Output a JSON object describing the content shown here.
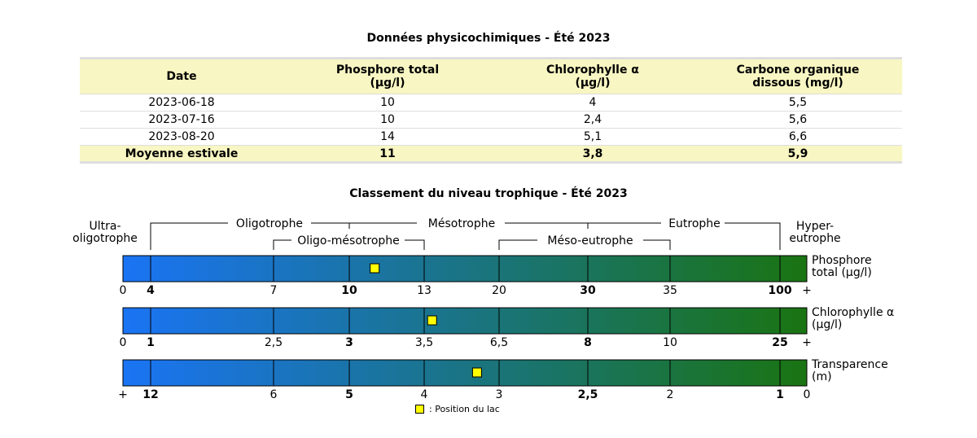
{
  "table": {
    "title": "Données physicochimiques - Été 2023",
    "headers": [
      {
        "line1": "Date",
        "line2": ""
      },
      {
        "line1": "Phosphore total",
        "line2": "(µg/l)"
      },
      {
        "line1": "Chlorophylle α",
        "line2": "(µg/l)"
      },
      {
        "line1": "Carbone organique",
        "line2": "dissous (mg/l)"
      }
    ],
    "rows": [
      [
        "2023-06-18",
        "10",
        "4",
        "5,5"
      ],
      [
        "2023-07-16",
        "10",
        "2,4",
        "5,6"
      ],
      [
        "2023-08-20",
        "14",
        "5,1",
        "6,6"
      ]
    ],
    "mean": [
      "Moyenne estivale",
      "11",
      "3,8",
      "5,9"
    ]
  },
  "chart_data": {
    "type": "gauge",
    "title": "Classement du niveau trophique - Été 2023",
    "zones_top": [
      {
        "label": "Ultra-\noligotrophe"
      },
      {
        "label": "Oligotrophe"
      },
      {
        "label": "Mésotrophe"
      },
      {
        "label": "Eutrophe"
      },
      {
        "label": "Hyper-\neutrophe"
      }
    ],
    "zones_sub": [
      {
        "label": "Oligo-mésotrophe"
      },
      {
        "label": "Méso-eutrophe"
      }
    ],
    "gradient": {
      "start": "#1a74f5",
      "end": "#1a7412"
    },
    "marker_color": "#ffff00",
    "scales": [
      {
        "name": "Phosphore\ntotal (µg/l)",
        "ticks": [
          {
            "label": "0",
            "bold": false,
            "pos": 0
          },
          {
            "label": "4",
            "bold": true,
            "pos": 1
          },
          {
            "label": "7",
            "bold": false,
            "pos": 2
          },
          {
            "label": "10",
            "bold": true,
            "pos": 3
          },
          {
            "label": "13",
            "bold": false,
            "pos": 4
          },
          {
            "label": "20",
            "bold": false,
            "pos": 5
          },
          {
            "label": "30",
            "bold": true,
            "pos": 6
          },
          {
            "label": "35",
            "bold": false,
            "pos": 7
          },
          {
            "label": "100",
            "bold": true,
            "pos": 8
          },
          {
            "label": "+",
            "bold": false,
            "pos": 9
          }
        ],
        "value": 11
      },
      {
        "name": "Chlorophylle α\n(µg/l)",
        "ticks": [
          {
            "label": "0",
            "bold": false,
            "pos": 0
          },
          {
            "label": "1",
            "bold": true,
            "pos": 1
          },
          {
            "label": "2,5",
            "bold": false,
            "pos": 2
          },
          {
            "label": "3",
            "bold": true,
            "pos": 3
          },
          {
            "label": "3,5",
            "bold": false,
            "pos": 4
          },
          {
            "label": "6,5",
            "bold": false,
            "pos": 5
          },
          {
            "label": "8",
            "bold": true,
            "pos": 6
          },
          {
            "label": "10",
            "bold": false,
            "pos": 7
          },
          {
            "label": "25",
            "bold": true,
            "pos": 8
          },
          {
            "label": "+",
            "bold": false,
            "pos": 9
          }
        ],
        "value": 3.8
      },
      {
        "name": "Transparence\n(m)",
        "ticks": [
          {
            "label": "+",
            "bold": false,
            "pos": 0
          },
          {
            "label": "12",
            "bold": true,
            "pos": 1
          },
          {
            "label": "6",
            "bold": false,
            "pos": 2
          },
          {
            "label": "5",
            "bold": true,
            "pos": 3
          },
          {
            "label": "4",
            "bold": false,
            "pos": 4
          },
          {
            "label": "3",
            "bold": false,
            "pos": 5
          },
          {
            "label": "2,5",
            "bold": true,
            "pos": 6
          },
          {
            "label": "2",
            "bold": false,
            "pos": 7
          },
          {
            "label": "1",
            "bold": true,
            "pos": 8
          },
          {
            "label": "0",
            "bold": false,
            "pos": 9
          }
        ],
        "value": 3.3
      }
    ],
    "legend": ": Position du lac"
  }
}
